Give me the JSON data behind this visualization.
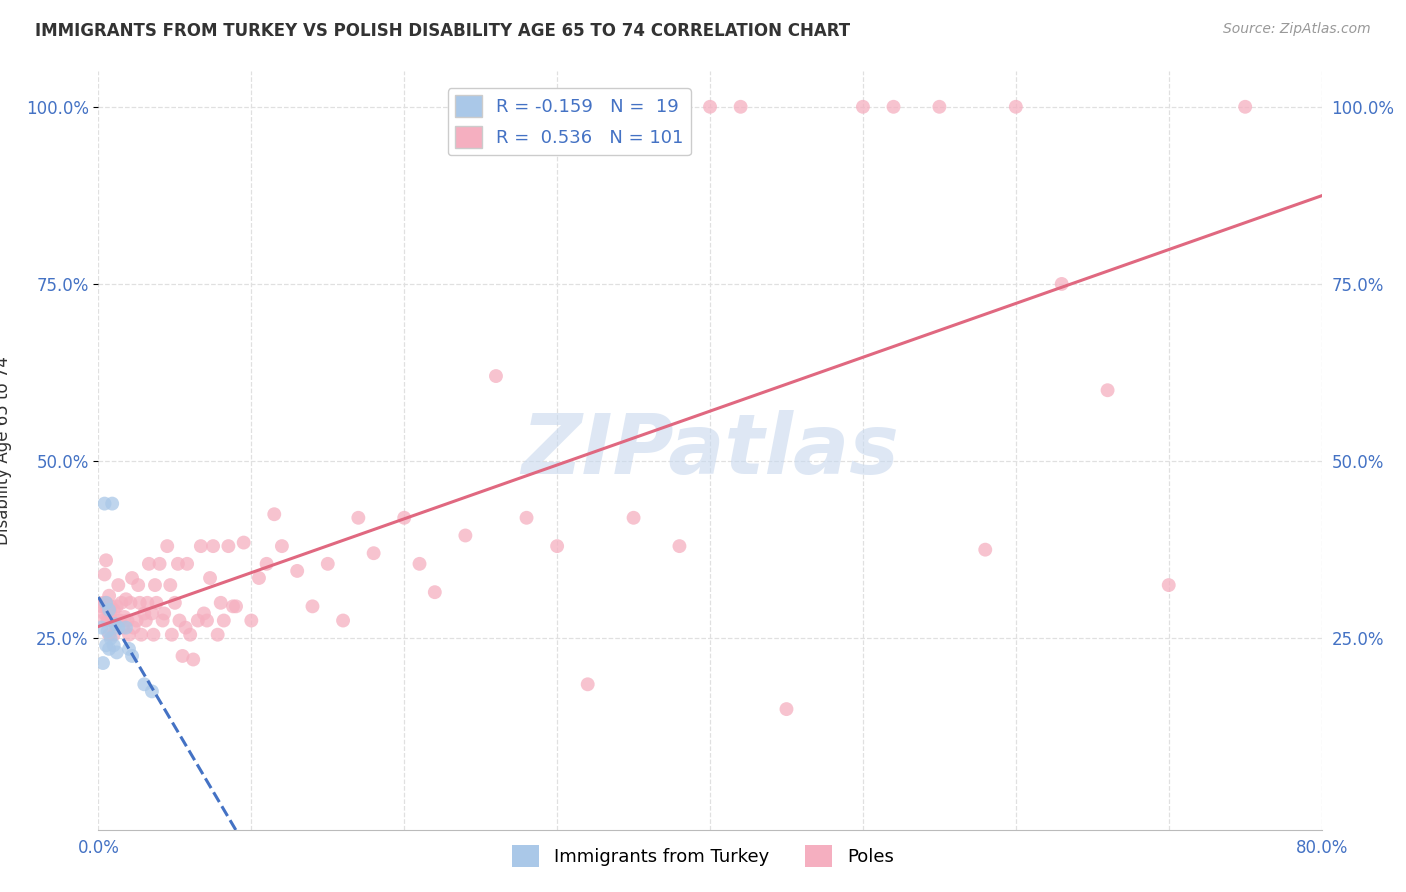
{
  "title": "IMMIGRANTS FROM TURKEY VS POLISH DISABILITY AGE 65 TO 74 CORRELATION CHART",
  "source": "Source: ZipAtlas.com",
  "ylabel": "Disability Age 65 to 74",
  "x_min": 0.0,
  "x_max": 0.8,
  "y_min": 0.0,
  "y_max": 1.05,
  "x_tick_labels_left": "0.0%",
  "x_tick_labels_right": "80.0%",
  "y_tick_labels": [
    "25.0%",
    "50.0%",
    "75.0%",
    "100.0%"
  ],
  "y_ticks": [
    0.25,
    0.5,
    0.75,
    1.0
  ],
  "turkey_color": "#aac8e8",
  "poles_color": "#f5afc0",
  "turkey_line_color": "#4472c4",
  "poles_line_color": "#e06880",
  "turkey_R": -0.159,
  "turkey_N": 19,
  "poles_R": 0.536,
  "poles_N": 101,
  "watermark_text": "ZIPatlas",
  "watermark_color": "#c8d8ee",
  "background_color": "#ffffff",
  "grid_color": "#e0e0e0",
  "text_color": "#333333",
  "axis_label_color": "#4472c4",
  "title_fontsize": 12,
  "legend_fontsize": 13,
  "tick_fontsize": 12,
  "scatter_size": 100,
  "scatter_alpha": 0.75,
  "turkey_x": [
    0.002,
    0.003,
    0.004,
    0.005,
    0.005,
    0.006,
    0.007,
    0.007,
    0.008,
    0.009,
    0.01,
    0.011,
    0.012,
    0.013,
    0.018,
    0.02,
    0.022,
    0.03,
    0.035
  ],
  "turkey_y": [
    0.265,
    0.215,
    0.44,
    0.24,
    0.3,
    0.26,
    0.29,
    0.235,
    0.25,
    0.44,
    0.24,
    0.27,
    0.23,
    0.265,
    0.265,
    0.235,
    0.225,
    0.185,
    0.175
  ],
  "poles_x": [
    0.002,
    0.003,
    0.003,
    0.004,
    0.004,
    0.005,
    0.005,
    0.006,
    0.006,
    0.007,
    0.007,
    0.008,
    0.008,
    0.009,
    0.01,
    0.01,
    0.011,
    0.012,
    0.013,
    0.014,
    0.015,
    0.016,
    0.017,
    0.018,
    0.019,
    0.02,
    0.021,
    0.022,
    0.023,
    0.025,
    0.026,
    0.027,
    0.028,
    0.03,
    0.031,
    0.032,
    0.033,
    0.035,
    0.036,
    0.037,
    0.038,
    0.04,
    0.042,
    0.043,
    0.045,
    0.047,
    0.048,
    0.05,
    0.052,
    0.053,
    0.055,
    0.057,
    0.058,
    0.06,
    0.062,
    0.065,
    0.067,
    0.069,
    0.071,
    0.073,
    0.075,
    0.078,
    0.08,
    0.082,
    0.085,
    0.088,
    0.09,
    0.095,
    0.1,
    0.105,
    0.11,
    0.115,
    0.12,
    0.13,
    0.14,
    0.15,
    0.16,
    0.17,
    0.18,
    0.2,
    0.21,
    0.22,
    0.24,
    0.26,
    0.28,
    0.3,
    0.32,
    0.35,
    0.38,
    0.4,
    0.42,
    0.45,
    0.5,
    0.52,
    0.55,
    0.58,
    0.6,
    0.63,
    0.66,
    0.7,
    0.75
  ],
  "poles_y": [
    0.295,
    0.3,
    0.275,
    0.34,
    0.285,
    0.3,
    0.36,
    0.29,
    0.275,
    0.31,
    0.255,
    0.295,
    0.285,
    0.275,
    0.29,
    0.255,
    0.27,
    0.295,
    0.325,
    0.275,
    0.3,
    0.265,
    0.28,
    0.305,
    0.275,
    0.255,
    0.3,
    0.335,
    0.265,
    0.275,
    0.325,
    0.3,
    0.255,
    0.285,
    0.275,
    0.3,
    0.355,
    0.285,
    0.255,
    0.325,
    0.3,
    0.355,
    0.275,
    0.285,
    0.38,
    0.325,
    0.255,
    0.3,
    0.355,
    0.275,
    0.225,
    0.265,
    0.355,
    0.255,
    0.22,
    0.275,
    0.38,
    0.285,
    0.275,
    0.335,
    0.38,
    0.255,
    0.3,
    0.275,
    0.38,
    0.295,
    0.295,
    0.385,
    0.275,
    0.335,
    0.355,
    0.425,
    0.38,
    0.345,
    0.295,
    0.355,
    0.275,
    0.42,
    0.37,
    0.42,
    0.355,
    0.315,
    0.395,
    0.62,
    0.42,
    0.38,
    0.185,
    0.42,
    0.38,
    1.0,
    1.0,
    0.15,
    1.0,
    1.0,
    1.0,
    0.375,
    1.0,
    0.75,
    0.6,
    0.325,
    1.0
  ]
}
